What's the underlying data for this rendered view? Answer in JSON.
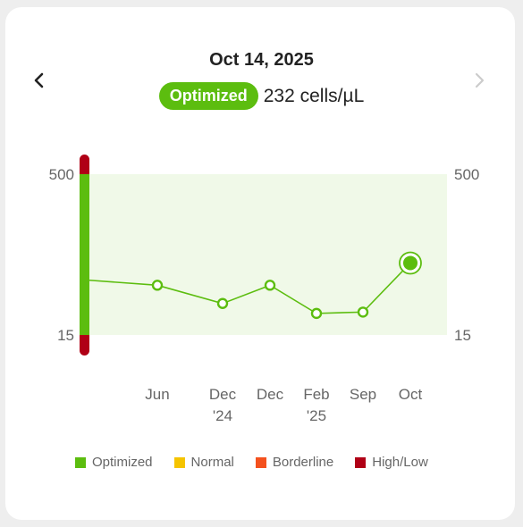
{
  "header": {
    "date": "Oct 14, 2025",
    "status_label": "Optimized",
    "value_text": "232 cells/µL"
  },
  "colors": {
    "optimized": "#5cbd0f",
    "normal": "#f5c400",
    "borderline": "#f4511e",
    "high_low": "#b00016",
    "band_fill": "#f0f9e8",
    "nav_disabled": "#cccccc"
  },
  "icons": {
    "prev": "chevron-left-icon",
    "next": "chevron-right-icon"
  },
  "legend": [
    {
      "label": "Optimized",
      "color": "#5cbd0f"
    },
    {
      "label": "Normal",
      "color": "#f5c400"
    },
    {
      "label": "Borderline",
      "color": "#f4511e"
    },
    {
      "label": "High/Low",
      "color": "#b00016"
    }
  ],
  "chart_data": {
    "type": "line",
    "y_range_labels": {
      "top": "500",
      "bottom": "15"
    },
    "ylim": [
      15,
      500
    ],
    "categories": [
      {
        "line1": "Jun",
        "line2": ""
      },
      {
        "line1": "Dec",
        "line2": "'24"
      },
      {
        "line1": "Dec",
        "line2": ""
      },
      {
        "line1": "Feb",
        "line2": "'25"
      },
      {
        "line1": "Sep",
        "line2": ""
      },
      {
        "line1": "Oct",
        "line2": ""
      }
    ],
    "start_value": 180,
    "values": [
      165,
      110,
      165,
      80,
      84,
      232
    ],
    "selected_index": 5
  }
}
